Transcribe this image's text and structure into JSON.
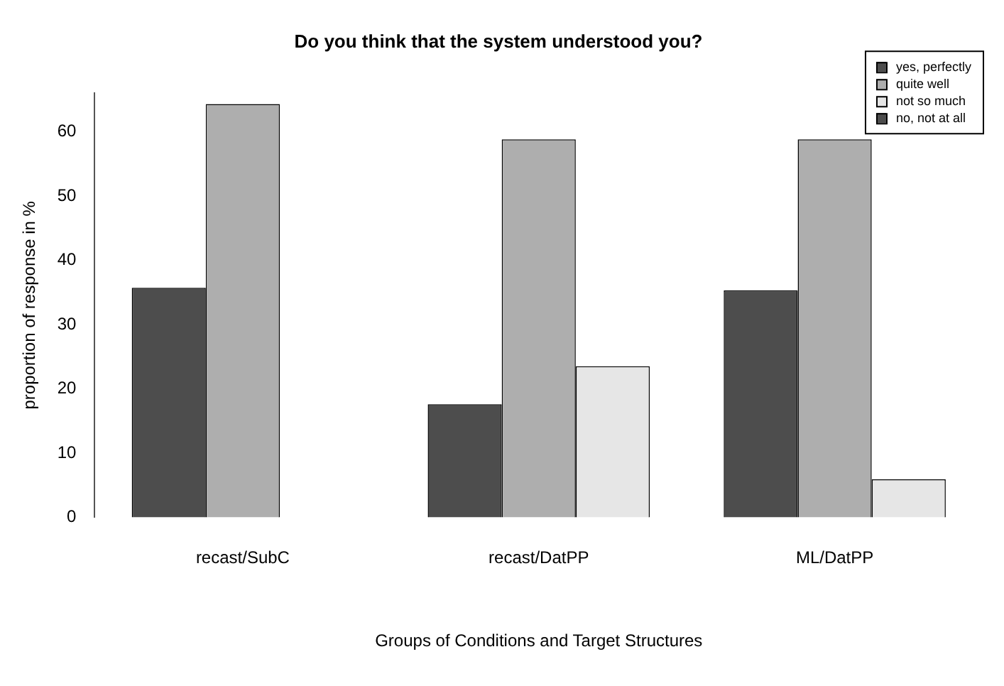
{
  "chart_data": {
    "type": "bar",
    "title": "Do you think that the system understood you?",
    "xlabel": "Groups of Conditions and Target Structures",
    "ylabel": "proportion of response in %",
    "categories": [
      "recast/SubC",
      "recast/DatPP",
      "ML/DatPP"
    ],
    "series": [
      {
        "name": "yes, perfectly",
        "color": "#4d4d4d",
        "values": [
          35.7,
          17.6,
          35.3
        ]
      },
      {
        "name": "quite well",
        "color": "#aeaeae",
        "values": [
          64.3,
          58.8,
          58.8
        ]
      },
      {
        "name": "not so much",
        "color": "#e6e6e6",
        "values": [
          0,
          23.5,
          5.9
        ]
      },
      {
        "name": "no, not at all",
        "color": "#4d4d4d",
        "values": [
          null,
          null,
          null
        ]
      }
    ],
    "ylim": [
      0,
      66
    ],
    "yticks": [
      0,
      10,
      20,
      30,
      40,
      50,
      60
    ],
    "grid": false,
    "legend": "top right"
  }
}
